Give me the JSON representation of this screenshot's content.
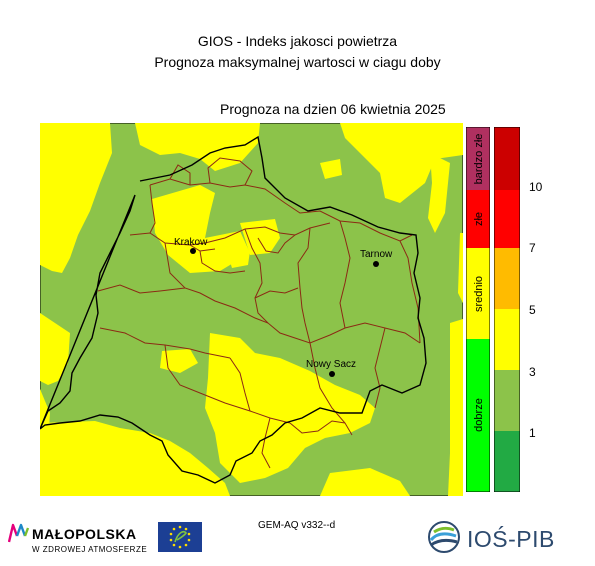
{
  "header": {
    "title_line1": "GIOS - Indeks jakosci powietrza",
    "title_line2": "Prognoza maksymalnej wartosci w ciagu doby",
    "forecast_date": "Prognoza na dzien  06 kwietnia 2025"
  },
  "map": {
    "cities": [
      {
        "name": "Krakow"
      },
      {
        "name": "Tarnow"
      },
      {
        "name": "Nowy Sacz"
      }
    ],
    "colors": {
      "good": "#8cc34a",
      "moderate": "#ffff00",
      "border": "#8b2a14",
      "outline": "#000000"
    }
  },
  "legend": {
    "categories": [
      {
        "label": "bardzo złe",
        "color": "#b03060"
      },
      {
        "label": "złe",
        "color": "#ff0000"
      },
      {
        "label": "srednio",
        "color": "#ffff00"
      },
      {
        "label": "dobrze",
        "color": "#00ff00"
      }
    ],
    "scale_colors": [
      "#cc0000",
      "#ff0000",
      "#ffbb00",
      "#ffff00",
      "#8cc34a",
      "#22aa44"
    ],
    "tick_labels": [
      "10",
      "7",
      "5",
      "3",
      "1"
    ]
  },
  "footer": {
    "model": "GEM-AQ v332--d",
    "malopolska_name": "MAŁOPOLSKA",
    "malopolska_tagline": "W ZDROWEJ ATMOSFERZE",
    "ios_name": "IOŚ-PIB"
  }
}
